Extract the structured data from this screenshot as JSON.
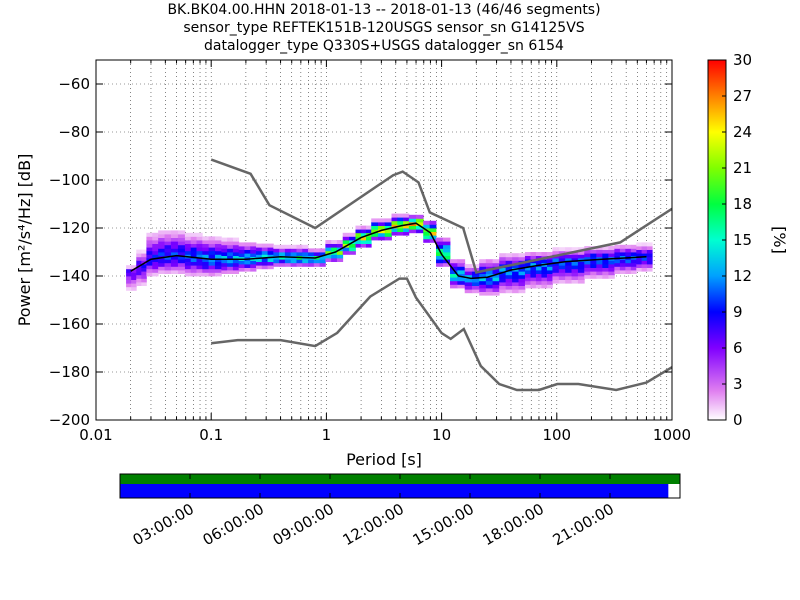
{
  "header": {
    "title_line1": "BK.BK04.00.HHN   2018-01-13 -- 2018-01-13  (46/46 segments)",
    "title_line2": "sensor_type REFTEK151B-120USGS sensor_sn G14125VS",
    "title_line3": "datalogger_type Q330S+USGS datalogger_sn 6154"
  },
  "colorbar": {
    "label": "[%]",
    "ticks": [
      "0",
      "3",
      "6",
      "9",
      "12",
      "15",
      "18",
      "21",
      "24",
      "27",
      "30"
    ],
    "range": [
      0,
      30
    ]
  },
  "chart_data": {
    "type": "heatmap",
    "xlabel": "Period [s]",
    "ylabel": "Power [m²/s⁴/Hz] [dB]",
    "x_scale": "log",
    "xlim": [
      0.01,
      1000
    ],
    "ylim": [
      -200,
      -50
    ],
    "x_tick_labels": [
      "0.01",
      "0.1",
      "1",
      "10",
      "100",
      "1000"
    ],
    "y_tick_labels": [
      "−60",
      "−80",
      "−100",
      "−120",
      "−140",
      "−160",
      "−180",
      "−200"
    ],
    "y_ticks": [
      -60,
      -80,
      -100,
      -120,
      -140,
      -160,
      -180,
      -200
    ],
    "grid": true,
    "noise_models": {
      "high": {
        "x": [
          0.1,
          0.22,
          0.32,
          0.8,
          3.8,
          4.6,
          6.3,
          7.9,
          15.4,
          20,
          354.8,
          1000
        ],
        "y": [
          -91.5,
          -97.4,
          -110.5,
          -120,
          -98,
          -96.5,
          -101,
          -113.5,
          -120,
          -138.5,
          -126,
          -112
        ]
      },
      "low": {
        "x": [
          0.1,
          0.17,
          0.4,
          0.8,
          1.24,
          2.4,
          4.3,
          5,
          6,
          10,
          12,
          15.6,
          21.9,
          31.6,
          45,
          70,
          101,
          154,
          328,
          600,
          1000
        ],
        "y": [
          -168,
          -166.7,
          -166.7,
          -169.2,
          -163.7,
          -148.6,
          -141.1,
          -141.1,
          -149,
          -163.8,
          -166.2,
          -162.1,
          -177.5,
          -185,
          -187.5,
          -187.5,
          -185,
          -185,
          -187.5,
          -184.4,
          -178
        ]
      }
    },
    "mode_curve": {
      "x": [
        0.02,
        0.03,
        0.05,
        0.1,
        0.2,
        0.4,
        0.8,
        1.2,
        2,
        3,
        4.5,
        6,
        8,
        10,
        14,
        18,
        25,
        40,
        70,
        120,
        250,
        600
      ],
      "y": [
        -138,
        -133,
        -131.5,
        -133,
        -133,
        -132,
        -132.5,
        -130,
        -124,
        -121,
        -119,
        -118,
        -122,
        -131,
        -140,
        -141,
        -140.5,
        -137.5,
        -135.5,
        -134,
        -133,
        -132
      ]
    },
    "pdf_columns": [
      {
        "x": 0.02,
        "lo": -146,
        "hi": -136,
        "peak": -138,
        "max_pct": 8
      },
      {
        "x": 0.025,
        "lo": -144,
        "hi": -130,
        "peak": -136,
        "max_pct": 9
      },
      {
        "x": 0.03,
        "lo": -140,
        "hi": -122,
        "peak": -133,
        "max_pct": 10
      },
      {
        "x": 0.04,
        "lo": -139,
        "hi": -121,
        "peak": -132,
        "max_pct": 11
      },
      {
        "x": 0.05,
        "lo": -139,
        "hi": -121,
        "peak": -131.5,
        "max_pct": 11
      },
      {
        "x": 0.07,
        "lo": -140,
        "hi": -123,
        "peak": -132,
        "max_pct": 12
      },
      {
        "x": 0.1,
        "lo": -140,
        "hi": -124,
        "peak": -133,
        "max_pct": 13
      },
      {
        "x": 0.15,
        "lo": -139,
        "hi": -125,
        "peak": -133,
        "max_pct": 14
      },
      {
        "x": 0.2,
        "lo": -138,
        "hi": -126,
        "peak": -133,
        "max_pct": 15
      },
      {
        "x": 0.3,
        "lo": -137,
        "hi": -127,
        "peak": -132,
        "max_pct": 16
      },
      {
        "x": 0.4,
        "lo": -136,
        "hi": -128,
        "peak": -132,
        "max_pct": 17
      },
      {
        "x": 0.6,
        "lo": -136,
        "hi": -128,
        "peak": -132.5,
        "max_pct": 18
      },
      {
        "x": 0.8,
        "lo": -136,
        "hi": -129,
        "peak": -132.5,
        "max_pct": 18
      },
      {
        "x": 1.2,
        "lo": -134,
        "hi": -126,
        "peak": -130,
        "max_pct": 22
      },
      {
        "x": 1.6,
        "lo": -131,
        "hi": -123,
        "peak": -127,
        "max_pct": 24
      },
      {
        "x": 2,
        "lo": -128,
        "hi": -120,
        "peak": -124,
        "max_pct": 26
      },
      {
        "x": 3,
        "lo": -125,
        "hi": -117,
        "peak": -121,
        "max_pct": 27
      },
      {
        "x": 4.5,
        "lo": -123,
        "hi": -115,
        "peak": -119,
        "max_pct": 28
      },
      {
        "x": 6,
        "lo": -122,
        "hi": -115,
        "peak": -118,
        "max_pct": 30
      },
      {
        "x": 8,
        "lo": -126,
        "hi": -117,
        "peak": -122,
        "max_pct": 26
      },
      {
        "x": 10,
        "lo": -136,
        "hi": -124,
        "peak": -131,
        "max_pct": 20
      },
      {
        "x": 14,
        "lo": -145,
        "hi": -133,
        "peak": -140,
        "max_pct": 16
      },
      {
        "x": 18,
        "lo": -147,
        "hi": -136,
        "peak": -141,
        "max_pct": 14
      },
      {
        "x": 25,
        "lo": -148,
        "hi": -133,
        "peak": -140.5,
        "max_pct": 14
      },
      {
        "x": 40,
        "lo": -147,
        "hi": -131,
        "peak": -137.5,
        "max_pct": 13
      },
      {
        "x": 70,
        "lo": -145,
        "hi": -130,
        "peak": -135.5,
        "max_pct": 13
      },
      {
        "x": 120,
        "lo": -143,
        "hi": -129,
        "peak": -134,
        "max_pct": 12
      },
      {
        "x": 250,
        "lo": -141,
        "hi": -128,
        "peak": -133,
        "max_pct": 12
      },
      {
        "x": 400,
        "lo": -139,
        "hi": -127,
        "peak": -132.5,
        "max_pct": 12
      },
      {
        "x": 600,
        "lo": -138,
        "hi": -127,
        "peak": -132,
        "max_pct": 11
      }
    ]
  },
  "timeline": {
    "ticks": [
      "03:00:00",
      "06:00:00",
      "09:00:00",
      "12:00:00",
      "15:00:00",
      "18:00:00",
      "21:00:00"
    ],
    "data_coverage": [
      0,
      24
    ],
    "psd_coverage": [
      0,
      23.5
    ],
    "colors": {
      "data_bar": "#008000",
      "psd_bar": "#0000ff"
    }
  },
  "colors": {
    "noise_model": "#666666",
    "mode_curve": "#000000",
    "grid": "#000000"
  }
}
